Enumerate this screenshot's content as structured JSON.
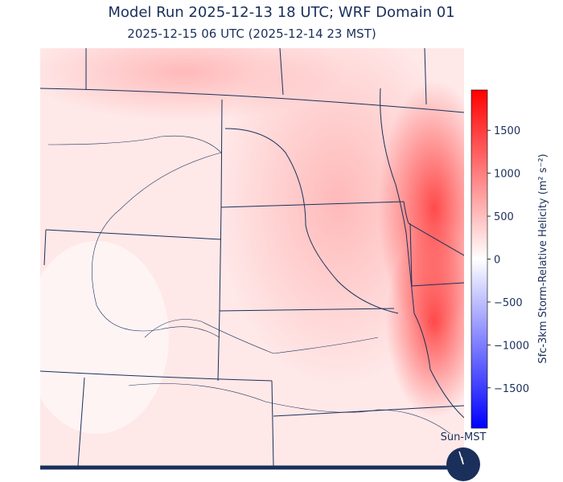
{
  "header": {
    "title": "Model Run 2025-12-13 18 UTC; WRF Domain 01",
    "subtitle": "2025-12-15 06 UTC  (2025-12-14 23 MST)"
  },
  "colorbar": {
    "label": "Sfc-3km Storm-Relative Helicity (m² s⁻²)",
    "lim": [
      -1970,
      1970
    ],
    "colors": [
      "#0000ff",
      "#ffffff",
      "#ff0000"
    ],
    "ticks": [
      {
        "value": -1500,
        "label": "−1500"
      },
      {
        "value": -1000,
        "label": "−1000"
      },
      {
        "value": -500,
        "label": "−500"
      },
      0,
      500,
      1000,
      1500
    ]
  },
  "clock": {
    "label": "Sun-MST"
  }
}
